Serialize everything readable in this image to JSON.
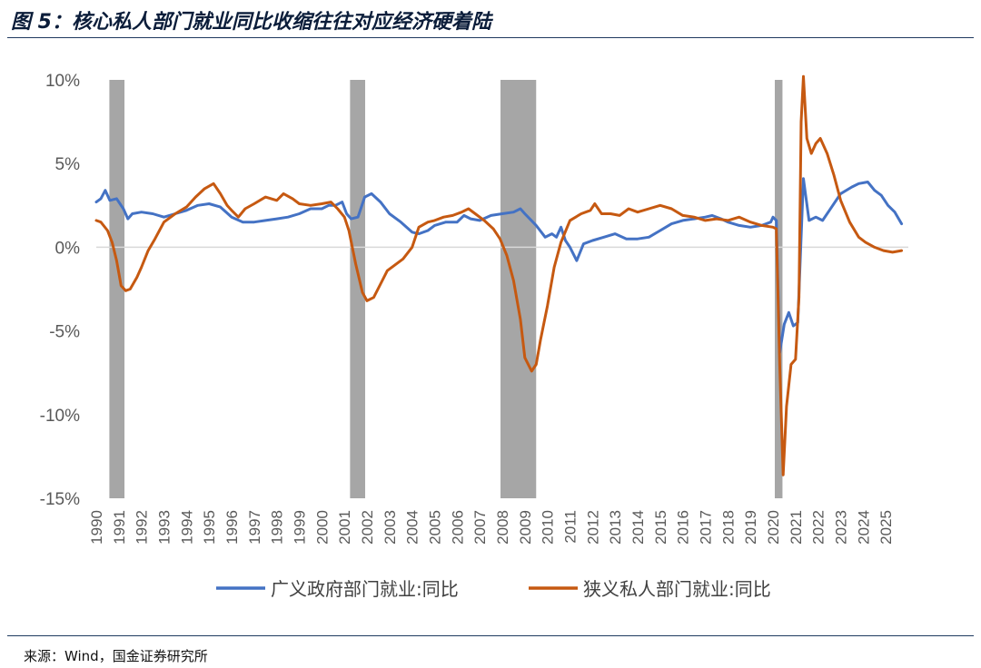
{
  "header": {
    "title": "图 5：核心私人部门就业同比收缩往往对应经济硬着陆"
  },
  "footer": {
    "source": "来源：Wind，国金证券研究所"
  },
  "chart_data": {
    "type": "line",
    "xlim": [
      1990,
      2026
    ],
    "ylim": [
      -15,
      10
    ],
    "y_ticks": [
      "10%",
      "5%",
      "0%",
      "-5%",
      "-10%",
      "-15%"
    ],
    "x_ticks": [
      "1990",
      "1991",
      "1992",
      "1993",
      "1994",
      "1995",
      "1996",
      "1997",
      "1998",
      "1999",
      "2000",
      "2001",
      "2002",
      "2003",
      "2004",
      "2005",
      "2006",
      "2007",
      "2008",
      "2009",
      "2010",
      "2011",
      "2012",
      "2013",
      "2014",
      "2015",
      "2016",
      "2017",
      "2018",
      "2019",
      "2020",
      "2021",
      "2022",
      "2023",
      "2024",
      "2025"
    ],
    "shaded_periods": [
      [
        1990.58,
        1991.25
      ],
      [
        2001.25,
        2001.92
      ],
      [
        2007.92,
        2009.5
      ],
      [
        2020.08,
        2020.42
      ]
    ],
    "grid": false,
    "legend_position": "bottom",
    "series": [
      {
        "name": "广义政府部门就业:同比",
        "color": "#4472c4",
        "points": [
          [
            1990.0,
            2.7
          ],
          [
            1990.2,
            2.9
          ],
          [
            1990.4,
            3.4
          ],
          [
            1990.6,
            2.8
          ],
          [
            1990.9,
            2.9
          ],
          [
            1991.2,
            2.3
          ],
          [
            1991.4,
            1.7
          ],
          [
            1991.6,
            2.0
          ],
          [
            1992.0,
            2.1
          ],
          [
            1992.5,
            2.0
          ],
          [
            1993.0,
            1.8
          ],
          [
            1993.5,
            2.0
          ],
          [
            1994.0,
            2.2
          ],
          [
            1994.5,
            2.5
          ],
          [
            1995.0,
            2.6
          ],
          [
            1995.5,
            2.4
          ],
          [
            1996.0,
            1.8
          ],
          [
            1996.5,
            1.5
          ],
          [
            1997.0,
            1.5
          ],
          [
            1997.5,
            1.6
          ],
          [
            1998.0,
            1.7
          ],
          [
            1998.5,
            1.8
          ],
          [
            1999.0,
            2.0
          ],
          [
            1999.5,
            2.3
          ],
          [
            2000.0,
            2.3
          ],
          [
            2000.3,
            2.5
          ],
          [
            2000.6,
            2.5
          ],
          [
            2000.9,
            2.7
          ],
          [
            2001.1,
            2.0
          ],
          [
            2001.3,
            1.7
          ],
          [
            2001.6,
            1.8
          ],
          [
            2001.9,
            3.0
          ],
          [
            2002.2,
            3.2
          ],
          [
            2002.6,
            2.7
          ],
          [
            2003.0,
            2.0
          ],
          [
            2003.5,
            1.5
          ],
          [
            2004.0,
            0.9
          ],
          [
            2004.3,
            0.8
          ],
          [
            2004.7,
            1.0
          ],
          [
            2005.0,
            1.3
          ],
          [
            2005.5,
            1.5
          ],
          [
            2006.0,
            1.5
          ],
          [
            2006.3,
            1.9
          ],
          [
            2006.6,
            1.7
          ],
          [
            2007.0,
            1.6
          ],
          [
            2007.5,
            1.9
          ],
          [
            2008.0,
            2.0
          ],
          [
            2008.5,
            2.1
          ],
          [
            2008.8,
            2.3
          ],
          [
            2009.0,
            2.0
          ],
          [
            2009.5,
            1.3
          ],
          [
            2009.9,
            0.6
          ],
          [
            2010.2,
            0.8
          ],
          [
            2010.4,
            0.6
          ],
          [
            2010.6,
            1.2
          ],
          [
            2010.8,
            0.4
          ],
          [
            2011.0,
            0.0
          ],
          [
            2011.3,
            -0.8
          ],
          [
            2011.6,
            0.2
          ],
          [
            2012.0,
            0.4
          ],
          [
            2012.5,
            0.6
          ],
          [
            2013.0,
            0.8
          ],
          [
            2013.5,
            0.5
          ],
          [
            2014.0,
            0.5
          ],
          [
            2014.5,
            0.6
          ],
          [
            2015.0,
            1.0
          ],
          [
            2015.5,
            1.4
          ],
          [
            2016.0,
            1.6
          ],
          [
            2016.5,
            1.7
          ],
          [
            2017.0,
            1.8
          ],
          [
            2017.3,
            1.9
          ],
          [
            2017.7,
            1.7
          ],
          [
            2018.0,
            1.5
          ],
          [
            2018.5,
            1.3
          ],
          [
            2019.0,
            1.2
          ],
          [
            2019.5,
            1.3
          ],
          [
            2019.9,
            1.5
          ],
          [
            2020.0,
            1.8
          ],
          [
            2020.15,
            1.6
          ],
          [
            2020.3,
            -6.3
          ],
          [
            2020.5,
            -4.6
          ],
          [
            2020.7,
            -3.9
          ],
          [
            2020.9,
            -4.7
          ],
          [
            2021.1,
            -4.5
          ],
          [
            2021.35,
            4.1
          ],
          [
            2021.6,
            1.6
          ],
          [
            2021.9,
            1.8
          ],
          [
            2022.2,
            1.6
          ],
          [
            2022.5,
            2.2
          ],
          [
            2023.0,
            3.2
          ],
          [
            2023.5,
            3.6
          ],
          [
            2023.8,
            3.8
          ],
          [
            2024.2,
            3.9
          ],
          [
            2024.5,
            3.4
          ],
          [
            2024.8,
            3.1
          ],
          [
            2025.1,
            2.5
          ],
          [
            2025.4,
            2.1
          ],
          [
            2025.7,
            1.4
          ]
        ]
      },
      {
        "name": "狭义私人部门就业:同比",
        "color": "#c65911",
        "points": [
          [
            1990.0,
            1.6
          ],
          [
            1990.2,
            1.5
          ],
          [
            1990.5,
            1.0
          ],
          [
            1990.7,
            0.3
          ],
          [
            1990.9,
            -0.8
          ],
          [
            1991.1,
            -2.3
          ],
          [
            1991.3,
            -2.6
          ],
          [
            1991.5,
            -2.5
          ],
          [
            1991.8,
            -1.8
          ],
          [
            1992.0,
            -1.2
          ],
          [
            1992.3,
            -0.2
          ],
          [
            1992.6,
            0.5
          ],
          [
            1993.0,
            1.5
          ],
          [
            1993.5,
            2.0
          ],
          [
            1994.0,
            2.4
          ],
          [
            1994.4,
            3.0
          ],
          [
            1994.8,
            3.5
          ],
          [
            1995.2,
            3.8
          ],
          [
            1995.5,
            3.2
          ],
          [
            1995.8,
            2.5
          ],
          [
            1996.0,
            2.2
          ],
          [
            1996.3,
            1.8
          ],
          [
            1996.6,
            2.3
          ],
          [
            1997.0,
            2.6
          ],
          [
            1997.5,
            3.0
          ],
          [
            1998.0,
            2.8
          ],
          [
            1998.3,
            3.2
          ],
          [
            1998.7,
            2.9
          ],
          [
            1999.0,
            2.6
          ],
          [
            1999.5,
            2.5
          ],
          [
            2000.0,
            2.6
          ],
          [
            2000.4,
            2.7
          ],
          [
            2000.7,
            2.3
          ],
          [
            2001.0,
            1.8
          ],
          [
            2001.2,
            1.0
          ],
          [
            2001.5,
            -1.0
          ],
          [
            2001.8,
            -2.7
          ],
          [
            2002.0,
            -3.2
          ],
          [
            2002.3,
            -3.0
          ],
          [
            2002.6,
            -2.2
          ],
          [
            2002.9,
            -1.4
          ],
          [
            2003.2,
            -1.1
          ],
          [
            2003.6,
            -0.7
          ],
          [
            2004.0,
            0.0
          ],
          [
            2004.3,
            1.2
          ],
          [
            2004.7,
            1.5
          ],
          [
            2005.0,
            1.6
          ],
          [
            2005.4,
            1.8
          ],
          [
            2005.8,
            1.9
          ],
          [
            2006.2,
            2.1
          ],
          [
            2006.5,
            2.3
          ],
          [
            2006.8,
            2.0
          ],
          [
            2007.2,
            1.6
          ],
          [
            2007.6,
            1.1
          ],
          [
            2007.9,
            0.5
          ],
          [
            2008.2,
            -0.5
          ],
          [
            2008.5,
            -2.0
          ],
          [
            2008.8,
            -4.3
          ],
          [
            2009.0,
            -6.6
          ],
          [
            2009.3,
            -7.4
          ],
          [
            2009.5,
            -7.0
          ],
          [
            2009.7,
            -5.5
          ],
          [
            2010.0,
            -3.5
          ],
          [
            2010.3,
            -1.2
          ],
          [
            2010.6,
            0.3
          ],
          [
            2011.0,
            1.6
          ],
          [
            2011.5,
            2.0
          ],
          [
            2011.9,
            2.2
          ],
          [
            2012.1,
            2.6
          ],
          [
            2012.4,
            2.0
          ],
          [
            2012.8,
            2.0
          ],
          [
            2013.2,
            1.9
          ],
          [
            2013.6,
            2.3
          ],
          [
            2014.0,
            2.1
          ],
          [
            2014.5,
            2.3
          ],
          [
            2015.0,
            2.5
          ],
          [
            2015.5,
            2.3
          ],
          [
            2016.0,
            1.9
          ],
          [
            2016.5,
            1.8
          ],
          [
            2017.0,
            1.6
          ],
          [
            2017.5,
            1.7
          ],
          [
            2018.0,
            1.6
          ],
          [
            2018.5,
            1.8
          ],
          [
            2019.0,
            1.5
          ],
          [
            2019.5,
            1.3
          ],
          [
            2020.0,
            1.2
          ],
          [
            2020.15,
            1.1
          ],
          [
            2020.3,
            -7.0
          ],
          [
            2020.45,
            -13.6
          ],
          [
            2020.6,
            -9.5
          ],
          [
            2020.8,
            -7.0
          ],
          [
            2021.0,
            -6.7
          ],
          [
            2021.15,
            -3.0
          ],
          [
            2021.25,
            7.5
          ],
          [
            2021.35,
            10.2
          ],
          [
            2021.5,
            6.5
          ],
          [
            2021.7,
            5.6
          ],
          [
            2021.9,
            6.2
          ],
          [
            2022.1,
            6.5
          ],
          [
            2022.4,
            5.6
          ],
          [
            2022.7,
            4.3
          ],
          [
            2023.0,
            2.8
          ],
          [
            2023.4,
            1.5
          ],
          [
            2023.8,
            0.6
          ],
          [
            2024.1,
            0.3
          ],
          [
            2024.5,
            0.0
          ],
          [
            2024.9,
            -0.2
          ],
          [
            2025.3,
            -0.3
          ],
          [
            2025.7,
            -0.2
          ]
        ]
      }
    ]
  }
}
